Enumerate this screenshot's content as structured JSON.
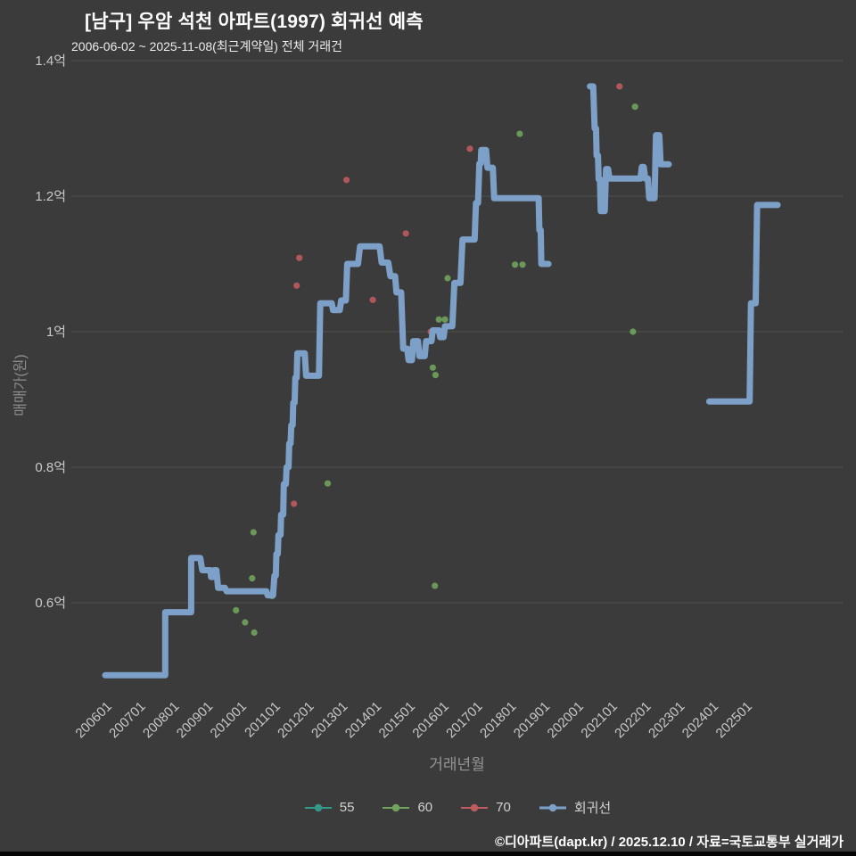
{
  "header": {
    "title": "[남구] 우암 석천 아파트(1997) 회귀선 예측",
    "subtitle": "2006-06-02 ~ 2025-11-08(최근계약일) 전체 거래건"
  },
  "footer": {
    "text": "©디아파트(dapt.kr) / 2025.12.10 / 자료=국토교통부 실거래가"
  },
  "chart_data": {
    "type": "line",
    "title": "[남구] 우암 석천 아파트(1997) 회귀선 예측",
    "subtitle": "2006-06-02 ~ 2025-11-08(최근계약일) 전체 거래건",
    "xlabel": "거래년월",
    "ylabel": "매매가(원)",
    "unit": "억",
    "grid": true,
    "legend_position": "bottom",
    "xlim": [
      2005.8,
      2026.3
    ],
    "ylim": [
      0.45,
      1.42
    ],
    "colors": {
      "background": "#3b3b3b",
      "gridline": "#4f4f4f",
      "tick_text": "#c9c9c9",
      "axis_title": "#919191",
      "series_55": "#35998a",
      "series_60": "#70a35c",
      "series_70": "#bf5a5f",
      "regression": "#7da0c8"
    },
    "yticks": [
      {
        "value": 0.6,
        "label": "0.6억"
      },
      {
        "value": 0.8,
        "label": "0.8억"
      },
      {
        "value": 1.0,
        "label": "1억"
      },
      {
        "value": 1.2,
        "label": "1.2억"
      },
      {
        "value": 1.4,
        "label": "1.4억"
      }
    ],
    "xticks": [
      {
        "value": 2006,
        "label": "200601"
      },
      {
        "value": 2007,
        "label": "200701"
      },
      {
        "value": 2008,
        "label": "200801"
      },
      {
        "value": 2009,
        "label": "200901"
      },
      {
        "value": 2010,
        "label": "201001"
      },
      {
        "value": 2011,
        "label": "201101"
      },
      {
        "value": 2012,
        "label": "201201"
      },
      {
        "value": 2013,
        "label": "201301"
      },
      {
        "value": 2014,
        "label": "201401"
      },
      {
        "value": 2015,
        "label": "201501"
      },
      {
        "value": 2016,
        "label": "201601"
      },
      {
        "value": 2017,
        "label": "201701"
      },
      {
        "value": 2018,
        "label": "201801"
      },
      {
        "value": 2019,
        "label": "201901"
      },
      {
        "value": 2020,
        "label": "202001"
      },
      {
        "value": 2021,
        "label": "202101"
      },
      {
        "value": 2022,
        "label": "202201"
      },
      {
        "value": 2023,
        "label": "202301"
      },
      {
        "value": 2024,
        "label": "202401"
      },
      {
        "value": 2025,
        "label": "202501"
      }
    ],
    "series": [
      {
        "id": "s55",
        "name": "55",
        "type": "scatter",
        "color": "#35998a",
        "points": []
      },
      {
        "id": "s60",
        "name": "60",
        "type": "scatter",
        "color": "#70a35c",
        "points": [
          [
            2009.88,
            0.589
          ],
          [
            2010.15,
            0.571
          ],
          [
            2010.42,
            0.556
          ],
          [
            2010.4,
            0.704
          ],
          [
            2010.36,
            0.636
          ],
          [
            2010.95,
            0.61
          ],
          [
            2012.6,
            0.776
          ],
          [
            2013.2,
            1.1
          ],
          [
            2015.78,
            0.625
          ],
          [
            2015.72,
            0.947
          ],
          [
            2015.8,
            0.936
          ],
          [
            2015.9,
            1.018
          ],
          [
            2016.08,
            1.018
          ],
          [
            2016.16,
            1.079
          ],
          [
            2016.36,
            1.071
          ],
          [
            2018.16,
            1.099
          ],
          [
            2018.38,
            1.099
          ],
          [
            2018.3,
            1.292
          ],
          [
            2021.66,
            1.0
          ],
          [
            2021.72,
            1.332
          ]
        ]
      },
      {
        "id": "s70",
        "name": "70",
        "type": "scatter",
        "color": "#bf5a5f",
        "points": [
          [
            2011.6,
            0.746
          ],
          [
            2011.68,
            1.068
          ],
          [
            2011.76,
            1.109
          ],
          [
            2013.16,
            1.224
          ],
          [
            2013.94,
            1.047
          ],
          [
            2014.92,
            1.145
          ],
          [
            2015.66,
            1.0
          ],
          [
            2016.82,
            1.27
          ],
          [
            2021.26,
            1.362
          ]
        ]
      },
      {
        "id": "regression",
        "name": "회귀선",
        "type": "line",
        "color": "#7da0c8",
        "segments": [
          [
            [
              2006.0,
              0.493
            ],
            [
              2007.78,
              0.493
            ],
            [
              2007.78,
              0.586
            ],
            [
              2008.55,
              0.586
            ],
            [
              2008.55,
              0.666
            ],
            [
              2008.82,
              0.666
            ],
            [
              2008.88,
              0.648
            ],
            [
              2009.12,
              0.648
            ],
            [
              2009.14,
              0.638
            ],
            [
              2009.2,
              0.638
            ],
            [
              2009.22,
              0.648
            ],
            [
              2009.3,
              0.648
            ],
            [
              2009.35,
              0.622
            ],
            [
              2009.55,
              0.622
            ],
            [
              2009.6,
              0.617
            ],
            [
              2010.78,
              0.617
            ],
            [
              2010.82,
              0.611
            ],
            [
              2010.98,
              0.611
            ],
            [
              2011.02,
              0.64
            ],
            [
              2011.06,
              0.64
            ],
            [
              2011.08,
              0.672
            ],
            [
              2011.12,
              0.672
            ],
            [
              2011.14,
              0.7
            ],
            [
              2011.2,
              0.7
            ],
            [
              2011.22,
              0.73
            ],
            [
              2011.28,
              0.73
            ],
            [
              2011.3,
              0.775
            ],
            [
              2011.36,
              0.775
            ],
            [
              2011.38,
              0.8
            ],
            [
              2011.44,
              0.8
            ],
            [
              2011.46,
              0.835
            ],
            [
              2011.5,
              0.835
            ],
            [
              2011.52,
              0.862
            ],
            [
              2011.56,
              0.862
            ],
            [
              2011.58,
              0.895
            ],
            [
              2011.62,
              0.895
            ],
            [
              2011.64,
              0.932
            ],
            [
              2011.68,
              0.932
            ],
            [
              2011.7,
              0.968
            ],
            [
              2011.92,
              0.968
            ],
            [
              2011.96,
              0.935
            ],
            [
              2012.34,
              0.935
            ],
            [
              2012.38,
              1.042
            ],
            [
              2012.72,
              1.042
            ],
            [
              2012.76,
              1.032
            ],
            [
              2012.96,
              1.032
            ],
            [
              2013.0,
              1.046
            ],
            [
              2013.14,
              1.046
            ],
            [
              2013.18,
              1.1
            ],
            [
              2013.5,
              1.1
            ],
            [
              2013.56,
              1.126
            ],
            [
              2014.14,
              1.126
            ],
            [
              2014.2,
              1.102
            ],
            [
              2014.4,
              1.102
            ],
            [
              2014.46,
              1.082
            ],
            [
              2014.6,
              1.082
            ],
            [
              2014.64,
              1.058
            ],
            [
              2014.78,
              1.058
            ],
            [
              2014.84,
              0.975
            ],
            [
              2014.96,
              0.975
            ],
            [
              2015.0,
              0.958
            ],
            [
              2015.1,
              0.958
            ],
            [
              2015.14,
              0.986
            ],
            [
              2015.28,
              0.986
            ],
            [
              2015.32,
              0.964
            ],
            [
              2015.48,
              0.964
            ],
            [
              2015.52,
              0.986
            ],
            [
              2015.68,
              0.986
            ],
            [
              2015.72,
              1.002
            ],
            [
              2015.9,
              1.002
            ],
            [
              2015.94,
              0.992
            ],
            [
              2016.04,
              0.992
            ],
            [
              2016.08,
              1.008
            ],
            [
              2016.3,
              1.008
            ],
            [
              2016.36,
              1.072
            ],
            [
              2016.54,
              1.072
            ],
            [
              2016.6,
              1.136
            ],
            [
              2016.96,
              1.136
            ],
            [
              2017.0,
              1.19
            ],
            [
              2017.06,
              1.19
            ],
            [
              2017.1,
              1.248
            ],
            [
              2017.14,
              1.248
            ],
            [
              2017.16,
              1.268
            ],
            [
              2017.3,
              1.268
            ],
            [
              2017.34,
              1.242
            ],
            [
              2017.5,
              1.242
            ],
            [
              2017.54,
              1.197
            ],
            [
              2018.86,
              1.197
            ],
            [
              2018.88,
              1.15
            ],
            [
              2018.92,
              1.15
            ],
            [
              2018.94,
              1.1
            ],
            [
              2019.15,
              1.1
            ]
          ],
          [
            [
              2020.38,
              1.362
            ],
            [
              2020.48,
              1.362
            ],
            [
              2020.52,
              1.3
            ],
            [
              2020.56,
              1.3
            ],
            [
              2020.58,
              1.26
            ],
            [
              2020.62,
              1.26
            ],
            [
              2020.64,
              1.225
            ],
            [
              2020.68,
              1.225
            ],
            [
              2020.7,
              1.178
            ],
            [
              2020.82,
              1.178
            ],
            [
              2020.86,
              1.24
            ],
            [
              2020.92,
              1.24
            ],
            [
              2020.96,
              1.226
            ],
            [
              2021.88,
              1.226
            ],
            [
              2021.92,
              1.243
            ],
            [
              2021.98,
              1.243
            ],
            [
              2022.02,
              1.226
            ],
            [
              2022.1,
              1.226
            ],
            [
              2022.14,
              1.197
            ],
            [
              2022.3,
              1.197
            ],
            [
              2022.34,
              1.29
            ],
            [
              2022.44,
              1.29
            ],
            [
              2022.48,
              1.247
            ],
            [
              2022.72,
              1.247
            ]
          ],
          [
            [
              2023.92,
              0.897
            ],
            [
              2025.12,
              0.897
            ],
            [
              2025.16,
              1.042
            ],
            [
              2025.3,
              1.042
            ],
            [
              2025.34,
              1.187
            ],
            [
              2025.95,
              1.187
            ]
          ]
        ]
      }
    ]
  }
}
